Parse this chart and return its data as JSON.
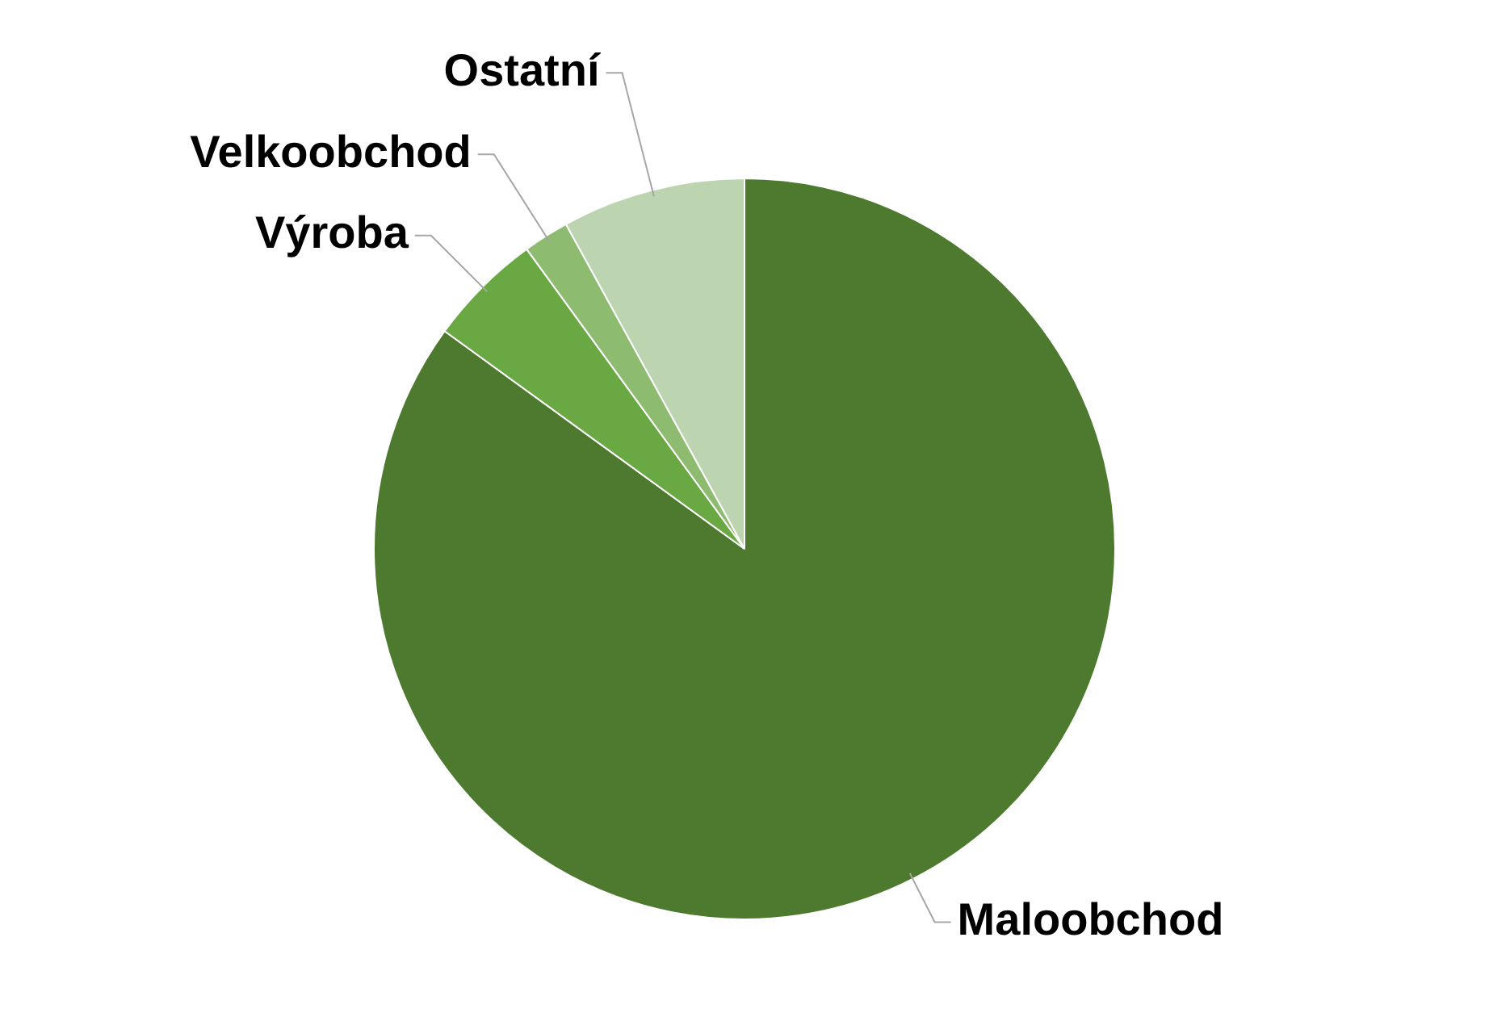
{
  "chart_data": {
    "type": "pie",
    "categories": [
      "Maloobchod",
      "Výroba",
      "Velkoobchod",
      "Ostatní"
    ],
    "values": [
      85,
      5,
      2,
      8
    ],
    "colors": [
      "#4e7a30",
      "#6aa843",
      "#8dbb70",
      "#bcd5b0"
    ],
    "legend": false
  }
}
